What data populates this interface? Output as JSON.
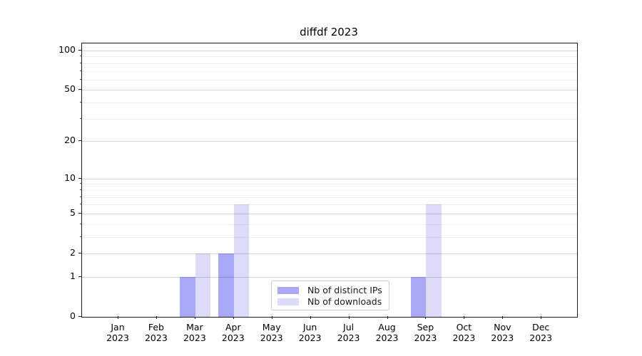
{
  "chart_data": {
    "type": "bar",
    "title": "diffdf 2023",
    "xlabel": "",
    "ylabel": "",
    "months": [
      "Jan",
      "Feb",
      "Mar",
      "Apr",
      "May",
      "Jun",
      "Jul",
      "Aug",
      "Sep",
      "Oct",
      "Nov",
      "Dec"
    ],
    "year": "2023",
    "series": [
      {
        "name": "Nb of distinct IPs",
        "color": "#a8a8f6",
        "values": [
          0,
          0,
          1,
          2,
          0,
          0,
          0,
          0,
          1,
          0,
          0,
          0
        ]
      },
      {
        "name": "Nb of downloads",
        "color": "#dcdcf9",
        "values": [
          0,
          0,
          2,
          6,
          0,
          0,
          0,
          0,
          6,
          0,
          0,
          0
        ]
      }
    ],
    "y_axis": {
      "scale": "log1p",
      "ylim": [
        0,
        100
      ],
      "major_ticks": [
        0,
        1,
        2,
        5,
        10,
        20,
        50,
        100
      ],
      "major_tick_labels": [
        "0",
        "1",
        "2",
        "5",
        "10",
        "20",
        "50",
        "100"
      ],
      "minor_grid_values": [
        3,
        4,
        6,
        7,
        8,
        9,
        30,
        40,
        60,
        70,
        80,
        90
      ]
    },
    "grid": true,
    "legend_position": "inside-bottom-center",
    "colors": {
      "spine": "#1a1a1a",
      "major_grid": "#d9d9d9",
      "minor_grid": "#ededed",
      "background": "#ffffff"
    }
  }
}
